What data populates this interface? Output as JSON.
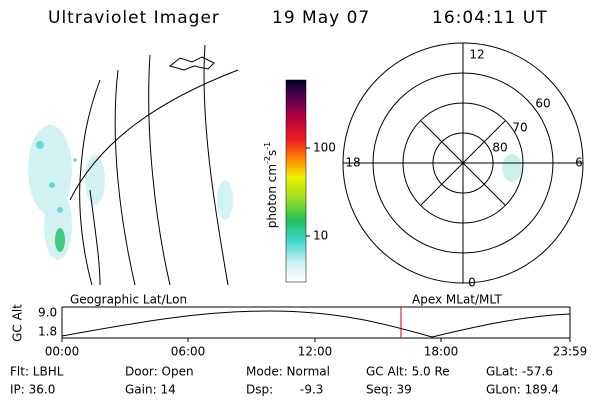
{
  "header": {
    "title": "Ultraviolet Imager",
    "date": "19 May 07",
    "time": "16:04:11 UT"
  },
  "colorbar": {
    "unit": [
      "photon cm",
      "-2",
      "s",
      "-1"
    ],
    "ticks": [
      "100",
      "10"
    ]
  },
  "polar": {
    "mlt": [
      "12",
      "18",
      "6",
      "0"
    ],
    "mlat": [
      "60",
      "70",
      "80"
    ]
  },
  "panels": {
    "left": "Geographic Lat/Lon",
    "right": "Apex MLat/MLT"
  },
  "altitude": {
    "label": "GC Alt",
    "yticks": [
      "9.0",
      "1.8"
    ],
    "xticks": [
      "00:00",
      "06:00",
      "12:00",
      "18:00",
      "23:59"
    ]
  },
  "footer": {
    "rows": [
      [
        "Flt: LBHL",
        "Door: Open",
        "Mode: Normal",
        "GC Alt: 5.0 Re",
        "GLat: -57.6"
      ],
      [
        "IP: 36.0",
        "Gain: 14",
        "Dsp:",
        "Seq: 39",
        "GLon: 189.4"
      ]
    ],
    "dsp_value": "-9.3"
  }
}
